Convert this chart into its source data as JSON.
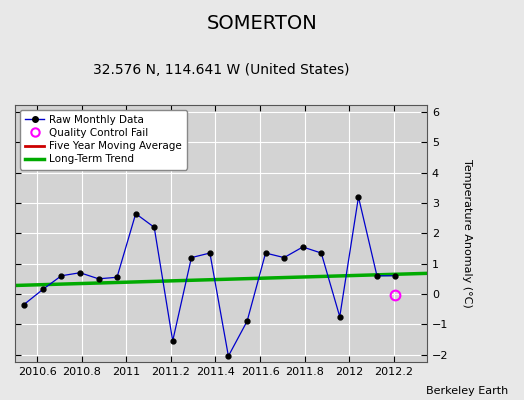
{
  "title": "SOMERTON",
  "subtitle": "32.576 N, 114.641 W (United States)",
  "ylabel": "Temperature Anomaly (°C)",
  "credit": "Berkeley Earth",
  "xlim": [
    2010.5,
    2012.35
  ],
  "ylim": [
    -2.25,
    6.25
  ],
  "yticks": [
    -2,
    -1,
    0,
    1,
    2,
    3,
    4,
    5,
    6
  ],
  "xticks": [
    2010.6,
    2010.8,
    2011.0,
    2011.2,
    2011.4,
    2011.6,
    2011.8,
    2012.0,
    2012.2
  ],
  "xtick_labels": [
    "2010.6",
    "2010.8",
    "2011",
    "2011.2",
    "2011.4",
    "2011.6",
    "2011.8",
    "2012",
    "2012.2"
  ],
  "raw_x": [
    2010.54,
    2010.625,
    2010.708,
    2010.792,
    2010.875,
    2010.958,
    2011.042,
    2011.125,
    2011.208,
    2011.292,
    2011.375,
    2011.458,
    2011.542,
    2011.625,
    2011.708,
    2011.792,
    2011.875,
    2011.958,
    2012.042,
    2012.125,
    2012.208
  ],
  "raw_y": [
    -0.35,
    0.15,
    0.6,
    0.7,
    0.5,
    0.55,
    2.65,
    2.2,
    -1.55,
    1.2,
    1.35,
    -2.05,
    -0.9,
    1.35,
    1.2,
    1.55,
    1.35,
    -0.75,
    3.2,
    0.6,
    0.6
  ],
  "qc_fail_x": [
    2012.208
  ],
  "qc_fail_y": [
    -0.05
  ],
  "trend_x": [
    2010.5,
    2012.35
  ],
  "trend_y": [
    0.28,
    0.68
  ],
  "bg_color": "#e8e8e8",
  "plot_bg_color": "#d3d3d3",
  "raw_line_color": "#0000cc",
  "raw_marker_color": "#000000",
  "trend_color": "#00aa00",
  "moving_avg_color": "#cc0000",
  "qc_fail_color": "#ff00ff",
  "title_fontsize": 14,
  "subtitle_fontsize": 10,
  "tick_fontsize": 8,
  "ylabel_fontsize": 8,
  "credit_fontsize": 8
}
